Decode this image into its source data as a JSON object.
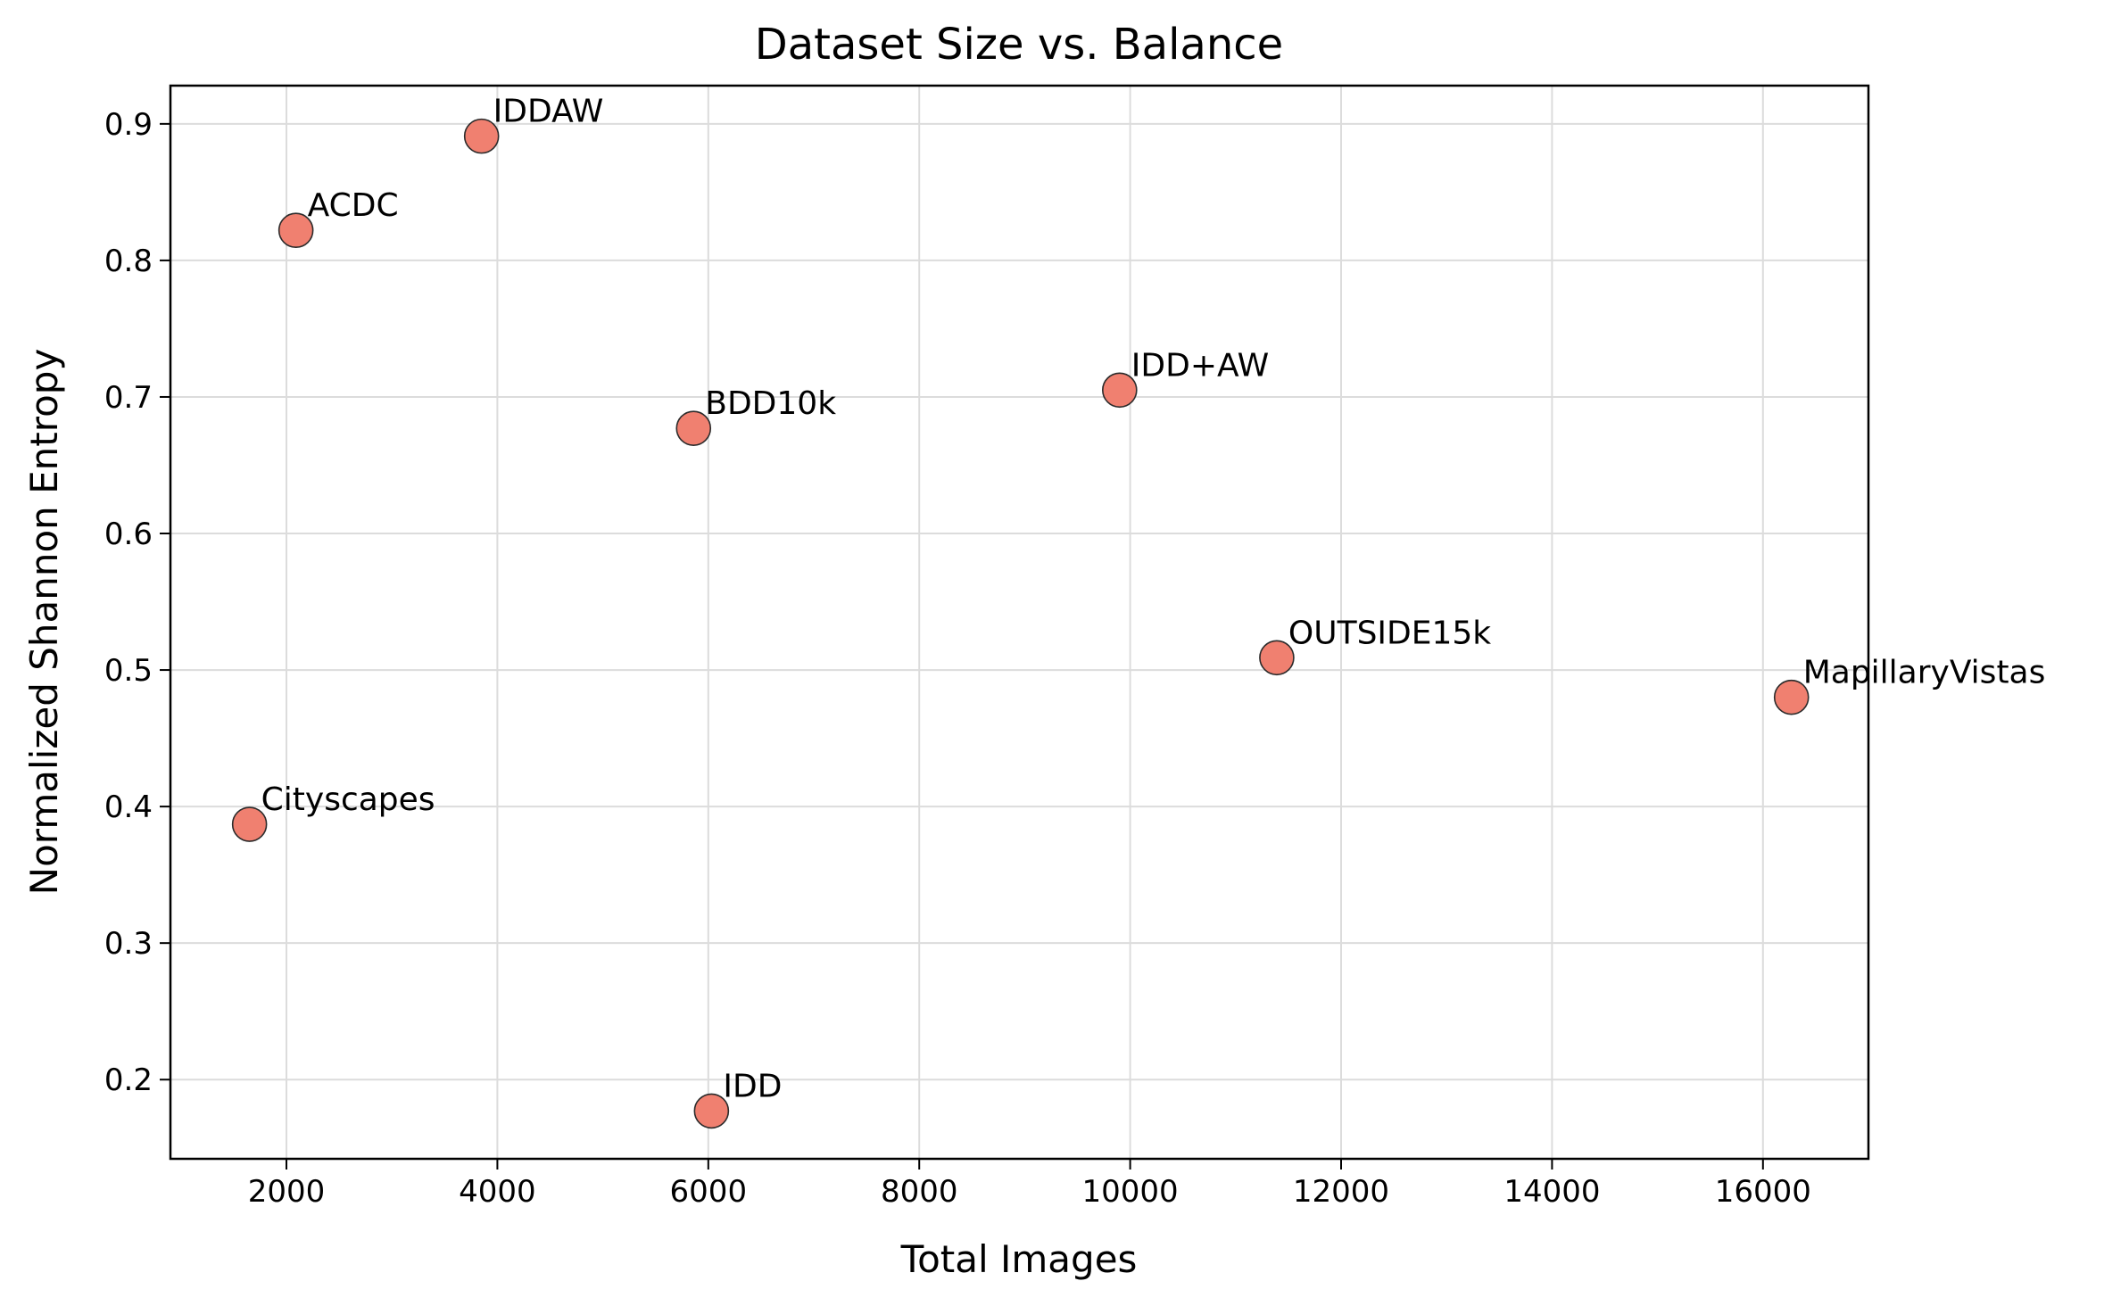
{
  "chart_data": {
    "type": "scatter",
    "title": "Dataset Size vs. Balance",
    "xlabel": "Total Images",
    "ylabel": "Normalized Shannon Entropy",
    "xlim": [
      900,
      17000
    ],
    "ylim": [
      0.142,
      0.928
    ],
    "xticks": [
      2000,
      4000,
      6000,
      8000,
      10000,
      12000,
      14000,
      16000
    ],
    "yticks": [
      0.2,
      0.3,
      0.4,
      0.5,
      0.6,
      0.7,
      0.8,
      0.9
    ],
    "grid": true,
    "marker_color": "#F08070",
    "marker_edge_color": "#2b2b2b",
    "points": [
      {
        "label": "Cityscapes",
        "x": 1650,
        "y": 0.387
      },
      {
        "label": "ACDC",
        "x": 2090,
        "y": 0.822
      },
      {
        "label": "IDDAW",
        "x": 3850,
        "y": 0.891
      },
      {
        "label": "BDD10k",
        "x": 5860,
        "y": 0.677
      },
      {
        "label": "IDD",
        "x": 6030,
        "y": 0.177
      },
      {
        "label": "IDD+AW",
        "x": 9900,
        "y": 0.705
      },
      {
        "label": "OUTSIDE15k",
        "x": 11390,
        "y": 0.509
      },
      {
        "label": "MapillaryVistas",
        "x": 16270,
        "y": 0.48
      }
    ]
  }
}
